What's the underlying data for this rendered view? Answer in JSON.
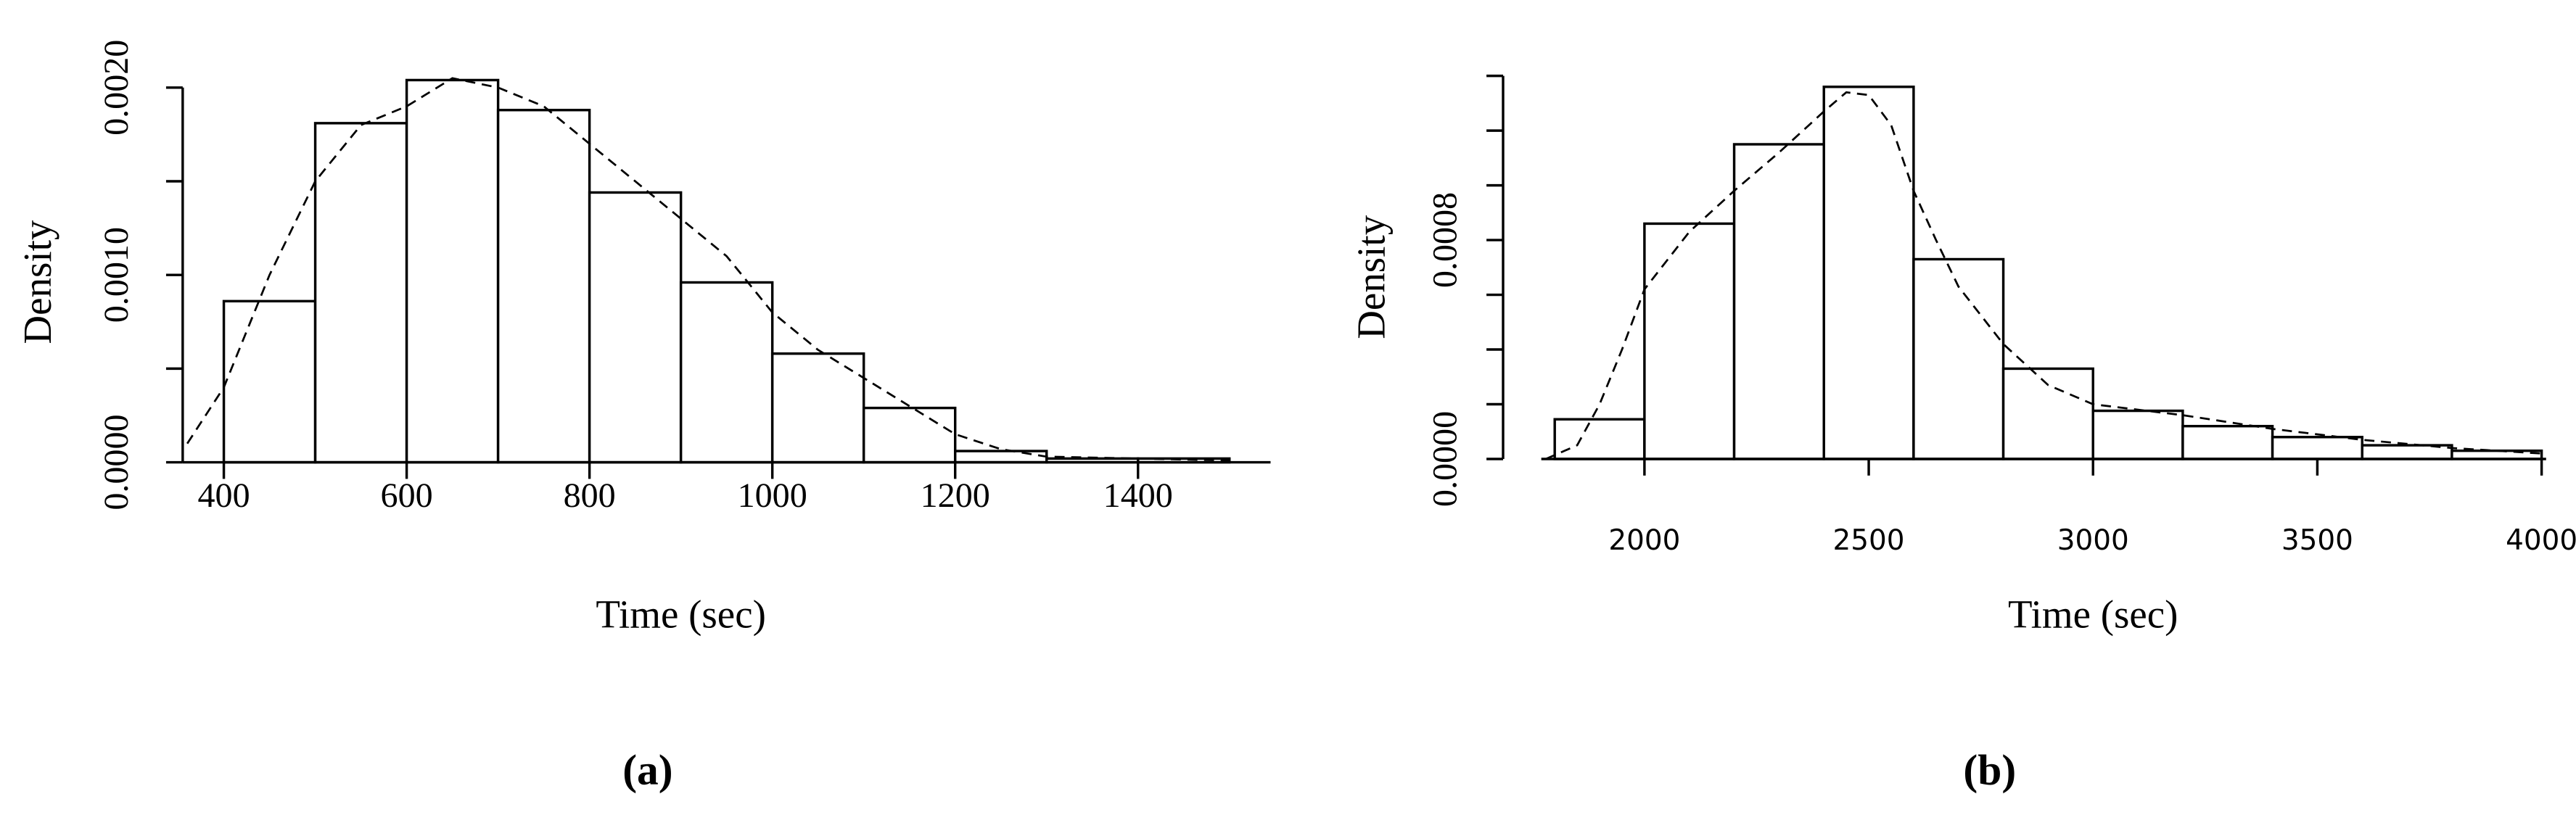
{
  "chart_data": [
    {
      "type": "histogram",
      "caption": "(a)",
      "xlabel": "Time (sec)",
      "ylabel": "Density",
      "bins": [
        400,
        500,
        600,
        700,
        800,
        900,
        1000,
        1100,
        1200,
        1300,
        1400,
        1500
      ],
      "values": [
        0.00086,
        0.00181,
        0.00204,
        0.00188,
        0.00144,
        0.00096,
        0.00058,
        0.00029,
        6e-05,
        2e-05,
        2e-05
      ],
      "curve": {
        "x": [
          360,
          400,
          450,
          500,
          550,
          600,
          650,
          700,
          750,
          800,
          850,
          900,
          950,
          1000,
          1050,
          1100,
          1150,
          1200,
          1250,
          1300,
          1400,
          1500
        ],
        "values": [
          0.0001,
          0.0004,
          0.001,
          0.0015,
          0.0018,
          0.0019,
          0.00205,
          0.002,
          0.0019,
          0.0017,
          0.0015,
          0.0013,
          0.0011,
          0.0008,
          0.0006,
          0.00045,
          0.0003,
          0.00015,
          7e-05,
          3e-05,
          2e-05,
          1e-05
        ]
      },
      "xlim": [
        355,
        1545
      ],
      "ylim": [
        0,
        0.0021
      ],
      "xticks": [
        400,
        600,
        800,
        1000,
        1200,
        1400
      ],
      "yticks": [
        {
          "value": 0,
          "label": "0.0000"
        },
        {
          "value": 0.0005,
          "label": null
        },
        {
          "value": 0.001,
          "label": "0.0010"
        },
        {
          "value": 0.0015,
          "label": null
        },
        {
          "value": 0.002,
          "label": "0.0020"
        }
      ]
    },
    {
      "type": "histogram",
      "caption": "(b)",
      "xlabel": "Time (sec)",
      "ylabel": "Density",
      "bins": [
        1800,
        2000,
        2200,
        2400,
        2600,
        2800,
        3000,
        3200,
        3400,
        3600,
        3800,
        4000
      ],
      "values": [
        0.000145,
        0.00086,
        0.00115,
        0.00136,
        0.00073,
        0.00033,
        0.000176,
        0.00012,
        8e-05,
        5e-05,
        3e-05
      ],
      "curve": {
        "x": [
          1780,
          1850,
          1900,
          1950,
          2000,
          2100,
          2200,
          2300,
          2400,
          2450,
          2500,
          2550,
          2600,
          2650,
          2700,
          2800,
          2900,
          3000,
          3200,
          3400,
          3600,
          3800,
          4000
        ],
        "values": [
          0,
          5e-05,
          0.0002,
          0.0004,
          0.00062,
          0.00083,
          0.00098,
          0.00112,
          0.00127,
          0.00134,
          0.00133,
          0.00122,
          0.00098,
          0.0008,
          0.00063,
          0.00042,
          0.00027,
          0.0002,
          0.00016,
          0.00011,
          7e-05,
          4e-05,
          2e-05
        ]
      },
      "xlim": [
        1770,
        4010
      ],
      "ylim": [
        0,
        0.00145
      ],
      "xticks": [
        2000,
        2500,
        3000,
        3500,
        4000
      ],
      "yticks": [
        {
          "value": 0,
          "label": "0.0000"
        },
        {
          "value": 0.0002,
          "label": null
        },
        {
          "value": 0.0004,
          "label": null
        },
        {
          "value": 0.0006,
          "label": null
        },
        {
          "value": 0.0008,
          "label": "0.0008"
        },
        {
          "value": 0.001,
          "label": null
        },
        {
          "value": 0.0012,
          "label": null
        },
        {
          "value": 0.0014,
          "label": null
        }
      ]
    }
  ]
}
